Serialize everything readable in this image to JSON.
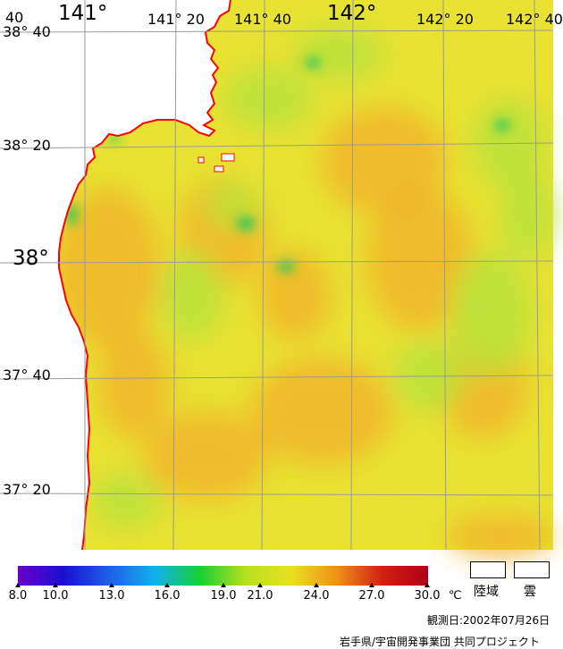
{
  "map": {
    "lon_labels": [
      "141°",
      "141° 20",
      "141° 40",
      "142°",
      "142° 20",
      "142° 40"
    ],
    "lat_labels": [
      "38° 40",
      "38° 20",
      "38°",
      "37° 40",
      "37° 20"
    ],
    "colors": {
      "sea_base": "#e9e232",
      "sea_warm": "#f0b02a",
      "sea_green": "#b9e23c",
      "sea_cool": "#2fc55a",
      "land": "#ffffff",
      "coastline": "#ff0000",
      "grid": "#9a9a9a"
    }
  },
  "scale": {
    "ticks": [
      "8.0",
      "10.0",
      "13.0",
      "16.0",
      "19.0",
      "21.0",
      "24.0",
      "27.0",
      "30.0"
    ],
    "unit": "℃",
    "gradient_colors": [
      "#6a00c8",
      "#1a10d0",
      "#1c60e8",
      "#10b0f0",
      "#18d030",
      "#b8e020",
      "#e8e020",
      "#f09018",
      "#d02010",
      "#b00018"
    ]
  },
  "legend": {
    "land_label": "陸域",
    "cloud_label": "雲"
  },
  "footer": {
    "observation_date": "観測日:2002年07月26日",
    "credit": "岩手県/宇宙開発事業団 共同プロジェクト"
  }
}
